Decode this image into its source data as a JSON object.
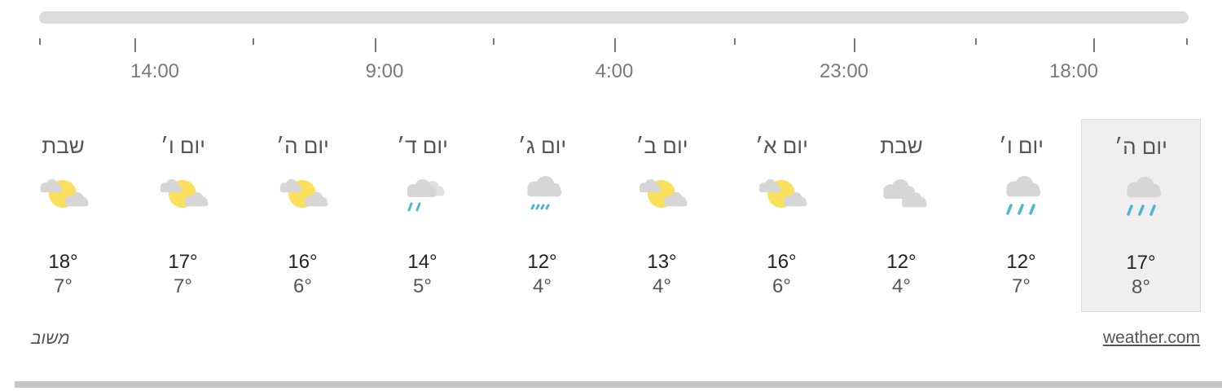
{
  "timeline": {
    "labels": [
      "14:00",
      "9:00",
      "4:00",
      "23:00",
      "18:00"
    ]
  },
  "days": [
    {
      "name": "יום ה׳",
      "icon": "rain-icon",
      "high": "17°",
      "low": "8°",
      "selected": true
    },
    {
      "name": "יום ו׳",
      "icon": "rain-icon",
      "high": "12°",
      "low": "7°"
    },
    {
      "name": "שבת",
      "icon": "cloudy-icon",
      "high": "12°",
      "low": "4°"
    },
    {
      "name": "יום א׳",
      "icon": "partly-sunny-icon",
      "high": "16°",
      "low": "6°"
    },
    {
      "name": "יום ב׳",
      "icon": "partly-sunny-icon",
      "high": "13°",
      "low": "4°"
    },
    {
      "name": "יום ג׳",
      "icon": "light-rain-icon",
      "high": "12°",
      "low": "4°"
    },
    {
      "name": "יום ד׳",
      "icon": "rain-partly-cloudy-icon",
      "high": "14°",
      "low": "5°"
    },
    {
      "name": "יום ה׳",
      "icon": "partly-sunny-icon",
      "high": "16°",
      "low": "6°"
    },
    {
      "name": "יום ו׳",
      "icon": "partly-sunny-icon",
      "high": "17°",
      "low": "7°"
    },
    {
      "name": "שבת",
      "icon": "partly-sunny-icon",
      "high": "18°",
      "low": "7°"
    }
  ],
  "footer": {
    "feedback": "משוב",
    "source": "weather.com"
  },
  "colors": {
    "sun": "#fbe15b",
    "cloud": "#d6d6d6",
    "rain": "#4db6d0",
    "selected_bg": "#efefef"
  }
}
